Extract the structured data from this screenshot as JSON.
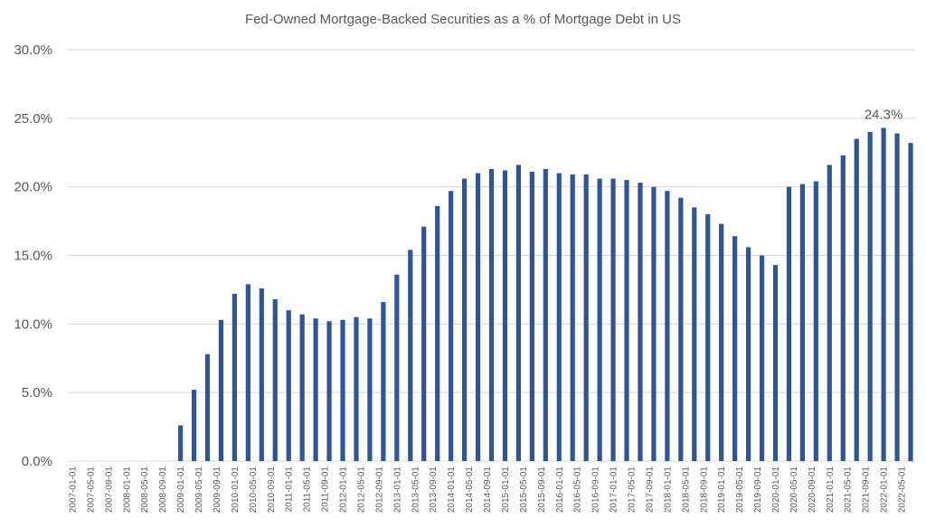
{
  "chart_data": {
    "type": "bar",
    "title": "Fed-Owned Mortgage-Backed Securities as a % of Mortgage Debt in US",
    "x": [
      "2009-01-01",
      "2009-04-01",
      "2009-07-01",
      "2009-10-01",
      "2010-01-01",
      "2010-04-01",
      "2010-07-01",
      "2010-10-01",
      "2011-01-01",
      "2011-04-01",
      "2011-07-01",
      "2011-10-01",
      "2012-01-01",
      "2012-04-01",
      "2012-07-01",
      "2012-10-01",
      "2013-01-01",
      "2013-04-01",
      "2013-07-01",
      "2013-10-01",
      "2014-01-01",
      "2014-04-01",
      "2014-07-01",
      "2014-10-01",
      "2015-01-01",
      "2015-04-01",
      "2015-07-01",
      "2015-10-01",
      "2016-01-01",
      "2016-04-01",
      "2016-07-01",
      "2016-10-01",
      "2017-01-01",
      "2017-04-01",
      "2017-07-01",
      "2017-10-01",
      "2018-01-01",
      "2018-04-01",
      "2018-07-01",
      "2018-10-01",
      "2019-01-01",
      "2019-04-01",
      "2019-07-01",
      "2019-10-01",
      "2020-01-01",
      "2020-04-01",
      "2020-07-01",
      "2020-10-01",
      "2021-01-01",
      "2021-04-01",
      "2021-07-01",
      "2021-10-01",
      "2022-01-01",
      "2022-04-01",
      "2022-07-01"
    ],
    "values": [
      2.6,
      5.2,
      7.8,
      10.3,
      12.2,
      12.9,
      12.6,
      11.8,
      11.0,
      10.7,
      10.4,
      10.2,
      10.3,
      10.5,
      10.4,
      11.6,
      13.6,
      15.4,
      17.1,
      18.6,
      19.7,
      20.6,
      21.0,
      21.3,
      21.2,
      21.6,
      21.1,
      21.3,
      21.0,
      20.9,
      20.9,
      20.6,
      20.6,
      20.5,
      20.3,
      20.0,
      19.7,
      19.2,
      18.5,
      18.0,
      17.3,
      16.4,
      15.6,
      15.0,
      14.3,
      20.0,
      20.2,
      20.4,
      21.6,
      22.3,
      23.5,
      24.0,
      24.3,
      23.9,
      23.2
    ],
    "value_labels": [
      null,
      null,
      null,
      null,
      null,
      null,
      null,
      null,
      null,
      null,
      null,
      null,
      null,
      null,
      null,
      null,
      null,
      null,
      null,
      null,
      null,
      null,
      null,
      null,
      null,
      null,
      null,
      null,
      null,
      null,
      null,
      null,
      null,
      null,
      null,
      null,
      null,
      null,
      null,
      null,
      null,
      null,
      null,
      null,
      null,
      null,
      null,
      null,
      null,
      null,
      null,
      null,
      "24.3%",
      null,
      null
    ],
    "color": "#2f5597",
    "xlim": [
      "2006-12-01",
      "2022-08-01"
    ],
    "xticks": [
      "2007-01-01",
      "2007-05-01",
      "2007-09-01",
      "2008-01-01",
      "2008-05-01",
      "2008-09-01",
      "2009-01-01",
      "2009-05-01",
      "2009-09-01",
      "2010-01-01",
      "2010-05-01",
      "2010-09-01",
      "2011-01-01",
      "2011-05-01",
      "2011-09-01",
      "2012-01-01",
      "2012-05-01",
      "2012-09-01",
      "2013-01-01",
      "2013-05-01",
      "2013-09-01",
      "2014-01-01",
      "2014-05-01",
      "2014-09-01",
      "2015-01-01",
      "2015-05-01",
      "2015-09-01",
      "2016-01-01",
      "2016-05-01",
      "2016-09-01",
      "2017-01-01",
      "2017-05-01",
      "2017-09-01",
      "2018-01-01",
      "2018-05-01",
      "2018-09-01",
      "2019-01-01",
      "2019-05-01",
      "2019-09-01",
      "2020-01-01",
      "2020-05-01",
      "2020-09-01",
      "2021-01-01",
      "2021-05-01",
      "2021-09-01",
      "2022-01-01",
      "2022-05-01"
    ],
    "ylim": [
      0,
      30
    ],
    "yticks": [
      {
        "value": 0,
        "label": "0.0%"
      },
      {
        "value": 5,
        "label": "5.0%"
      },
      {
        "value": 10,
        "label": "10.0%"
      },
      {
        "value": 15,
        "label": "15.0%"
      },
      {
        "value": 20,
        "label": "20.0%"
      },
      {
        "value": 25,
        "label": "25.0%"
      },
      {
        "value": 30,
        "label": "30.0%"
      }
    ],
    "grid": true
  }
}
